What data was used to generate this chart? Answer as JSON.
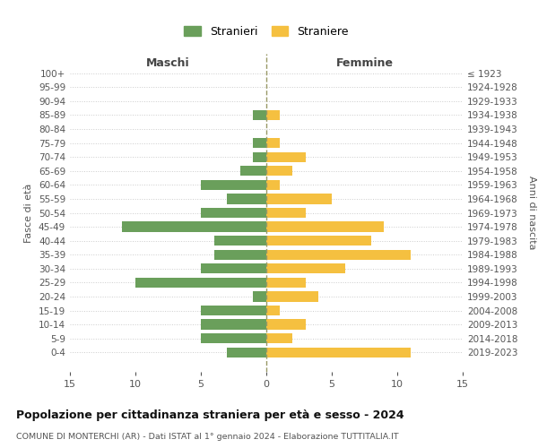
{
  "age_groups": [
    "100+",
    "95-99",
    "90-94",
    "85-89",
    "80-84",
    "75-79",
    "70-74",
    "65-69",
    "60-64",
    "55-59",
    "50-54",
    "45-49",
    "40-44",
    "35-39",
    "30-34",
    "25-29",
    "20-24",
    "15-19",
    "10-14",
    "5-9",
    "0-4"
  ],
  "birth_years": [
    "≤ 1923",
    "1924-1928",
    "1929-1933",
    "1934-1938",
    "1939-1943",
    "1944-1948",
    "1949-1953",
    "1954-1958",
    "1959-1963",
    "1964-1968",
    "1969-1973",
    "1974-1978",
    "1979-1983",
    "1984-1988",
    "1989-1993",
    "1994-1998",
    "1999-2003",
    "2004-2008",
    "2009-2013",
    "2014-2018",
    "2019-2023"
  ],
  "maschi": [
    0,
    0,
    0,
    1,
    0,
    1,
    1,
    2,
    5,
    3,
    5,
    11,
    4,
    4,
    5,
    10,
    1,
    5,
    5,
    5,
    3
  ],
  "femmine": [
    0,
    0,
    0,
    1,
    0,
    1,
    3,
    2,
    1,
    5,
    3,
    9,
    8,
    11,
    6,
    3,
    4,
    1,
    3,
    2,
    11
  ],
  "maschi_color": "#6a9f5b",
  "femmine_color": "#f5c040",
  "title": "Popolazione per cittadinanza straniera per età e sesso - 2024",
  "subtitle": "COMUNE DI MONTERCHI (AR) - Dati ISTAT al 1° gennaio 2024 - Elaborazione TUTTITALIA.IT",
  "xlabel_left": "Maschi",
  "xlabel_right": "Femmine",
  "ylabel_left": "Fasce di età",
  "ylabel_right": "Anni di nascita",
  "xlim": 15,
  "legend_stranieri": "Stranieri",
  "legend_straniere": "Straniere",
  "bg_color": "#ffffff",
  "grid_color": "#cccccc"
}
